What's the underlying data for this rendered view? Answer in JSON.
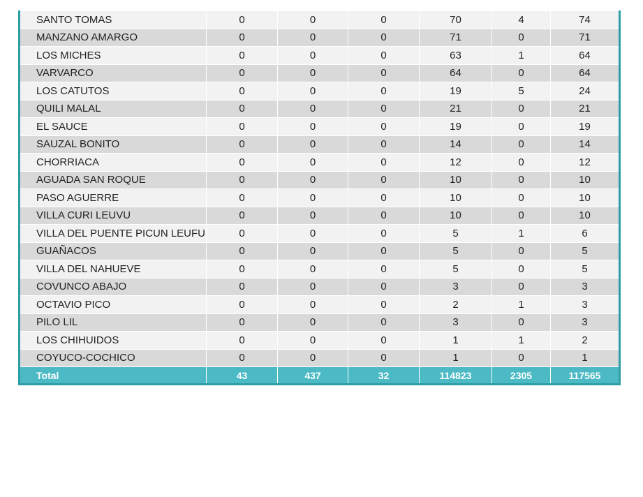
{
  "colors": {
    "border": "#2e9ea6",
    "total_bg": "#4bbac4",
    "row_light": "#f2f2f2",
    "row_dark": "#d9d9d9"
  },
  "rows": [
    [
      "SANTO TOMAS",
      "0",
      "0",
      "0",
      "70",
      "4",
      "74"
    ],
    [
      "MANZANO AMARGO",
      "0",
      "0",
      "0",
      "71",
      "0",
      "71"
    ],
    [
      "LOS MICHES",
      "0",
      "0",
      "0",
      "63",
      "1",
      "64"
    ],
    [
      "VARVARCO",
      "0",
      "0",
      "0",
      "64",
      "0",
      "64"
    ],
    [
      "LOS CATUTOS",
      "0",
      "0",
      "0",
      "19",
      "5",
      "24"
    ],
    [
      "QUILI MALAL",
      "0",
      "0",
      "0",
      "21",
      "0",
      "21"
    ],
    [
      "EL SAUCE",
      "0",
      "0",
      "0",
      "19",
      "0",
      "19"
    ],
    [
      "SAUZAL BONITO",
      "0",
      "0",
      "0",
      "14",
      "0",
      "14"
    ],
    [
      "CHORRIACA",
      "0",
      "0",
      "0",
      "12",
      "0",
      "12"
    ],
    [
      "AGUADA SAN ROQUE",
      "0",
      "0",
      "0",
      "10",
      "0",
      "10"
    ],
    [
      "PASO AGUERRE",
      "0",
      "0",
      "0",
      "10",
      "0",
      "10"
    ],
    [
      "VILLA CURI LEUVU",
      "0",
      "0",
      "0",
      "10",
      "0",
      "10"
    ],
    [
      "VILLA DEL PUENTE PICUN LEUFU",
      "0",
      "0",
      "0",
      "5",
      "1",
      "6"
    ],
    [
      "GUAÑACOS",
      "0",
      "0",
      "0",
      "5",
      "0",
      "5"
    ],
    [
      "VILLA DEL NAHUEVE",
      "0",
      "0",
      "0",
      "5",
      "0",
      "5"
    ],
    [
      "COVUNCO ABAJO",
      "0",
      "0",
      "0",
      "3",
      "0",
      "3"
    ],
    [
      "OCTAVIO PICO",
      "0",
      "0",
      "0",
      "2",
      "1",
      "3"
    ],
    [
      "PILO LIL",
      "0",
      "0",
      "0",
      "3",
      "0",
      "3"
    ],
    [
      "LOS CHIHUIDOS",
      "0",
      "0",
      "0",
      "1",
      "1",
      "2"
    ],
    [
      "COYUCO-COCHICO",
      "0",
      "0",
      "0",
      "1",
      "0",
      "1"
    ]
  ],
  "total": [
    "Total",
    "43",
    "437",
    "32",
    "114823",
    "2305",
    "117565"
  ]
}
